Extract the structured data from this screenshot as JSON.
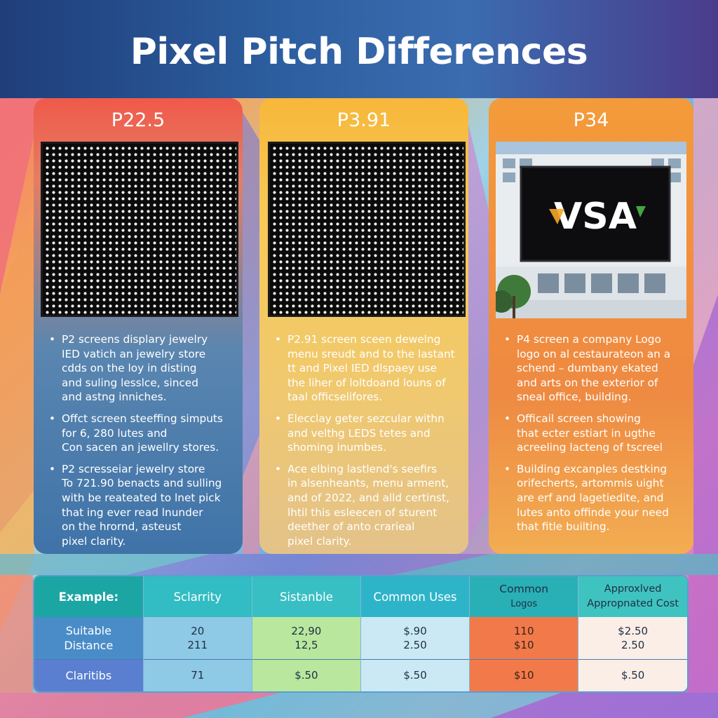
{
  "title": "Pixel Pitch Differences",
  "colors": {
    "header": "#2d5fa0",
    "card1": "#3f73a8",
    "card2": "#f7c957",
    "card3": "#f28f3e",
    "table_header": "#1ba6a4"
  },
  "cards": [
    {
      "title": "P22.5",
      "media": "led-dot-panel",
      "bullets": [
        [
          "P2 screens displary jewelry",
          "IED vatich an jewelry store",
          "cdds on the loy in disting",
          "and suling lesslce, sinced",
          "and astng inniches."
        ],
        [
          "Offct screen steeffing simputs",
          "for 6, 280 lutes and",
          "Con sacen an jewellry stores."
        ],
        [
          "P2 scresseiar jewelry store",
          "To 721.90 benacts and sulling",
          "with be reateated to lnet pick",
          "that ing ever read lnunder",
          "on the hrornd, asteust",
          "pixel clarity."
        ]
      ]
    },
    {
      "title": "P3.91",
      "media": "led-dot-panel",
      "bullets": [
        [
          "P2.91 screen sceen dewelng",
          "menu sreudt and to the lastant",
          "tt and Pixel IED dlspaey use",
          "the liher of loltdoand louns of",
          "taal officselifores."
        ],
        [
          "Elecclay geter sezcular withn",
          "and velthg LEDS tetes and",
          "shoming inumbes."
        ],
        [
          "Ace elbing lastlend's seefirs",
          "in alsenheants, menu arment,",
          "and of 2022, and alld certinst,",
          "lhtil this esleecen of sturent",
          "deether of anto crarieal",
          "pixel clarity."
        ]
      ]
    },
    {
      "title": "P34",
      "media": "building-billboard-photo",
      "billboard_text": "VSA",
      "bullets": [
        [
          "P4 screen a company Logo",
          "logo on al cestaurateon an a",
          "schend – dumbany ekated",
          "and arts on the exterior of",
          "sneal office, building."
        ],
        [
          "Officail screen showing",
          "that ecter estiart in ugthe",
          "acreeling lacteng of tscreel"
        ],
        [
          "Building excanples destking",
          "orifecherts, artommis uight",
          "are erf and lagetiedite, and",
          "lutes anto offinde your need",
          "that fitle builting."
        ]
      ]
    }
  ],
  "table": {
    "headers": [
      [
        "Example:"
      ],
      [
        "Sclarrity"
      ],
      [
        "Sistanble"
      ],
      [
        "Common Uses"
      ],
      [
        "Common",
        "Logos"
      ],
      [
        "Approxlved",
        "Appropnated Cost"
      ]
    ],
    "rows": [
      [
        [
          "Suitable",
          "Distance"
        ],
        [
          "20",
          "211"
        ],
        [
          "22,90",
          "12,5"
        ],
        [
          "$.90",
          "2.50"
        ],
        [
          "110",
          "$10"
        ],
        [
          "$2.50",
          "2.50"
        ]
      ],
      [
        [
          "Claritibs"
        ],
        [
          "71"
        ],
        [
          "$.50"
        ],
        [
          "$.50"
        ],
        [
          "$10"
        ],
        [
          "$.50"
        ]
      ]
    ]
  }
}
